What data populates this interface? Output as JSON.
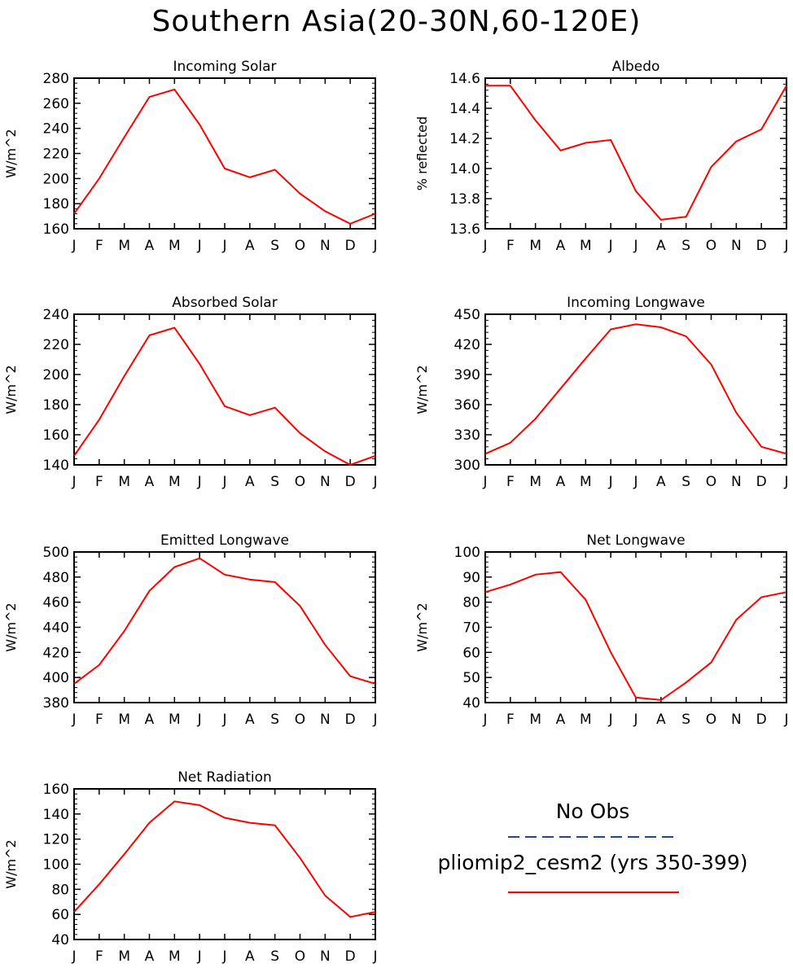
{
  "figure": {
    "title": "Southern Asia(20-30N,60-120E)"
  },
  "chart_data": [
    {
      "type": "line",
      "title": "Incoming Solar",
      "ylabel": "W/m^2",
      "xlabel": "",
      "x": [
        "J",
        "F",
        "M",
        "A",
        "M",
        "J",
        "J",
        "A",
        "S",
        "O",
        "N",
        "D",
        "J"
      ],
      "ylim": [
        160,
        280
      ],
      "yticks": [
        160,
        180,
        200,
        220,
        240,
        260,
        280
      ],
      "series": [
        {
          "name": "pliomip2_cesm2 (yrs 350-399)",
          "values": [
            172,
            200,
            233,
            265,
            271,
            243,
            208,
            201,
            207,
            188,
            174,
            164,
            172
          ]
        }
      ]
    },
    {
      "type": "line",
      "title": "Albedo",
      "ylabel": "% reflected",
      "xlabel": "",
      "x": [
        "J",
        "F",
        "M",
        "A",
        "M",
        "J",
        "J",
        "A",
        "S",
        "O",
        "N",
        "D",
        "J"
      ],
      "ylim": [
        13.6,
        14.6
      ],
      "yticks": [
        13.6,
        13.8,
        14.0,
        14.2,
        14.4,
        14.6
      ],
      "series": [
        {
          "name": "pliomip2_cesm2 (yrs 350-399)",
          "values": [
            14.55,
            14.55,
            14.32,
            14.12,
            14.17,
            14.19,
            13.85,
            13.66,
            13.68,
            14.01,
            14.18,
            14.26,
            14.55
          ]
        }
      ]
    },
    {
      "type": "line",
      "title": "Absorbed Solar",
      "ylabel": "W/m^2",
      "xlabel": "",
      "x": [
        "J",
        "F",
        "M",
        "A",
        "M",
        "J",
        "J",
        "A",
        "S",
        "O",
        "N",
        "D",
        "J"
      ],
      "ylim": [
        140,
        240
      ],
      "yticks": [
        140,
        160,
        180,
        200,
        220,
        240
      ],
      "series": [
        {
          "name": "pliomip2_cesm2 (yrs 350-399)",
          "values": [
            146,
            170,
            199,
            226,
            231,
            207,
            179,
            173,
            178,
            161,
            149,
            140,
            146
          ]
        }
      ]
    },
    {
      "type": "line",
      "title": "Incoming Longwave",
      "ylabel": "W/m^2",
      "xlabel": "",
      "x": [
        "J",
        "F",
        "M",
        "A",
        "M",
        "J",
        "J",
        "A",
        "S",
        "O",
        "N",
        "D",
        "J"
      ],
      "ylim": [
        300,
        450
      ],
      "yticks": [
        300,
        330,
        360,
        390,
        420,
        450
      ],
      "series": [
        {
          "name": "pliomip2_cesm2 (yrs 350-399)",
          "values": [
            311,
            322,
            346,
            376,
            406,
            435,
            440,
            437,
            428,
            400,
            352,
            318,
            311
          ]
        }
      ]
    },
    {
      "type": "line",
      "title": "Emitted Longwave",
      "ylabel": "W/m^2",
      "xlabel": "",
      "x": [
        "J",
        "F",
        "M",
        "A",
        "M",
        "J",
        "J",
        "A",
        "S",
        "O",
        "N",
        "D",
        "J"
      ],
      "ylim": [
        380,
        500
      ],
      "yticks": [
        380,
        400,
        420,
        440,
        460,
        480,
        500
      ],
      "series": [
        {
          "name": "pliomip2_cesm2 (yrs 350-399)",
          "values": [
            395,
            410,
            437,
            469,
            488,
            495,
            482,
            478,
            476,
            457,
            426,
            401,
            395
          ]
        }
      ]
    },
    {
      "type": "line",
      "title": "Net Longwave",
      "ylabel": "W/m^2",
      "xlabel": "",
      "x": [
        "J",
        "F",
        "M",
        "A",
        "M",
        "J",
        "J",
        "A",
        "S",
        "O",
        "N",
        "D",
        "J"
      ],
      "ylim": [
        40,
        100
      ],
      "yticks": [
        40,
        50,
        60,
        70,
        80,
        90,
        100
      ],
      "series": [
        {
          "name": "pliomip2_cesm2 (yrs 350-399)",
          "values": [
            84,
            87,
            91,
            92,
            81,
            60,
            42,
            41,
            48,
            56,
            73,
            82,
            84
          ]
        }
      ]
    },
    {
      "type": "line",
      "title": "Net Radiation",
      "ylabel": "W/m^2",
      "xlabel": "",
      "x": [
        "J",
        "F",
        "M",
        "A",
        "M",
        "J",
        "J",
        "A",
        "S",
        "O",
        "N",
        "D",
        "J"
      ],
      "ylim": [
        40,
        160
      ],
      "yticks": [
        40,
        60,
        80,
        100,
        120,
        140,
        160
      ],
      "series": [
        {
          "name": "pliomip2_cesm2 (yrs 350-399)",
          "values": [
            62,
            84,
            108,
            133,
            150,
            147,
            137,
            133,
            131,
            105,
            75,
            58,
            62
          ]
        }
      ]
    }
  ],
  "legend": {
    "obs_label": "No Obs",
    "obs_color": "#1f3fbf",
    "model_label": "pliomip2_cesm2 (yrs 350-399)",
    "model_color": "#ff0000"
  }
}
